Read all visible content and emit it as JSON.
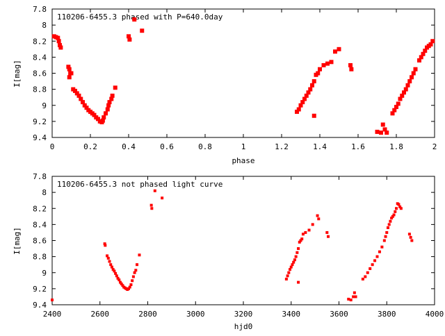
{
  "chart_data": [
    {
      "type": "scatter",
      "title": "110206-6455.3 phased with P=640.0day",
      "xlabel": "phase",
      "ylabel": "I[mag]",
      "xlim": [
        0,
        2
      ],
      "ylim": [
        7.8,
        9.4
      ],
      "y_inverted": true,
      "xticks": [
        0,
        0.2,
        0.4,
        0.6,
        0.8,
        1,
        1.2,
        1.4,
        1.6,
        1.8,
        2
      ],
      "xtick_labels": [
        "0",
        "0.2",
        "0.4",
        "0.6",
        "0.8",
        "1",
        "1.2",
        "1.4",
        "1.6",
        "1.8",
        "2"
      ],
      "yticks": [
        7.8,
        8,
        8.2,
        8.4,
        8.6,
        8.8,
        9,
        9.2,
        9.4
      ],
      "ytick_labels": [
        "7.8",
        "8",
        "8.2",
        "8.4",
        "8.6",
        "8.8",
        "9",
        "9.2",
        "9.4"
      ],
      "grid": false,
      "marker_color": "#ff0000",
      "points": [
        [
          0.01,
          8.14
        ],
        [
          0.02,
          8.15
        ],
        [
          0.03,
          8.16
        ],
        [
          0.035,
          8.2
        ],
        [
          0.04,
          8.25
        ],
        [
          0.045,
          8.28
        ],
        [
          0.085,
          8.52
        ],
        [
          0.09,
          8.55
        ],
        [
          0.095,
          8.6
        ],
        [
          0.09,
          8.65
        ],
        [
          0.1,
          8.6
        ],
        [
          0.11,
          8.8
        ],
        [
          0.12,
          8.82
        ],
        [
          0.13,
          8.85
        ],
        [
          0.14,
          8.88
        ],
        [
          0.15,
          8.92
        ],
        [
          0.16,
          8.96
        ],
        [
          0.17,
          9.0
        ],
        [
          0.18,
          9.03
        ],
        [
          0.19,
          9.06
        ],
        [
          0.2,
          9.08
        ],
        [
          0.21,
          9.1
        ],
        [
          0.22,
          9.12
        ],
        [
          0.23,
          9.15
        ],
        [
          0.24,
          9.17
        ],
        [
          0.25,
          9.2
        ],
        [
          0.26,
          9.21
        ],
        [
          0.265,
          9.19
        ],
        [
          0.27,
          9.15
        ],
        [
          0.28,
          9.1
        ],
        [
          0.29,
          9.05
        ],
        [
          0.295,
          9.0
        ],
        [
          0.3,
          8.96
        ],
        [
          0.31,
          8.92
        ],
        [
          0.315,
          8.88
        ],
        [
          0.33,
          8.78
        ],
        [
          0.4,
          8.14
        ],
        [
          0.405,
          8.18
        ],
        [
          0.43,
          7.93
        ],
        [
          0.47,
          8.07
        ],
        [
          1.28,
          9.08
        ],
        [
          1.29,
          9.05
        ],
        [
          1.3,
          9.0
        ],
        [
          1.31,
          8.96
        ],
        [
          1.32,
          8.92
        ],
        [
          1.33,
          8.88
        ],
        [
          1.34,
          8.84
        ],
        [
          1.35,
          8.8
        ],
        [
          1.36,
          8.75
        ],
        [
          1.37,
          8.7
        ],
        [
          1.38,
          8.62
        ],
        [
          1.39,
          8.6
        ],
        [
          1.4,
          8.55
        ],
        [
          1.37,
          9.13
        ],
        [
          1.42,
          8.5
        ],
        [
          1.44,
          8.48
        ],
        [
          1.46,
          8.46
        ],
        [
          1.48,
          8.33
        ],
        [
          1.5,
          8.3
        ],
        [
          1.56,
          8.5
        ],
        [
          1.565,
          8.55
        ],
        [
          1.7,
          9.33
        ],
        [
          1.72,
          9.34
        ],
        [
          1.74,
          9.3
        ],
        [
          1.75,
          9.34
        ],
        [
          1.73,
          9.24
        ],
        [
          1.78,
          9.1
        ],
        [
          1.79,
          9.06
        ],
        [
          1.8,
          9.02
        ],
        [
          1.81,
          8.98
        ],
        [
          1.82,
          8.92
        ],
        [
          1.83,
          8.88
        ],
        [
          1.84,
          8.84
        ],
        [
          1.85,
          8.8
        ],
        [
          1.86,
          8.75
        ],
        [
          1.87,
          8.7
        ],
        [
          1.88,
          8.65
        ],
        [
          1.89,
          8.6
        ],
        [
          1.9,
          8.55
        ],
        [
          1.92,
          8.44
        ],
        [
          1.93,
          8.4
        ],
        [
          1.94,
          8.36
        ],
        [
          1.95,
          8.32
        ],
        [
          1.96,
          8.28
        ],
        [
          1.97,
          8.26
        ],
        [
          1.98,
          8.24
        ],
        [
          1.99,
          8.2
        ]
      ]
    },
    {
      "type": "scatter",
      "title": "110206-6455.3 not phased light curve",
      "xlabel": "hjd0",
      "ylabel": "I[mag]",
      "xlim": [
        2400,
        4000
      ],
      "ylim": [
        7.8,
        9.4
      ],
      "y_inverted": true,
      "xticks": [
        2400,
        2600,
        2800,
        3000,
        3200,
        3400,
        3600,
        3800,
        4000
      ],
      "xtick_labels": [
        "2400",
        "2600",
        "2800",
        "3000",
        "3200",
        "3400",
        "3600",
        "3800",
        "4000"
      ],
      "yticks": [
        7.8,
        8,
        8.2,
        8.4,
        8.6,
        8.8,
        9,
        9.2,
        9.4
      ],
      "ytick_labels": [
        "7.8",
        "8",
        "8.2",
        "8.4",
        "8.6",
        "8.8",
        "9",
        "9.2",
        "9.4"
      ],
      "grid": false,
      "marker_color": "#ff0000",
      "points": [
        [
          2400,
          9.34
        ],
        [
          2620,
          8.64
        ],
        [
          2622,
          8.66
        ],
        [
          2630,
          8.79
        ],
        [
          2635,
          8.82
        ],
        [
          2640,
          8.86
        ],
        [
          2645,
          8.9
        ],
        [
          2650,
          8.93
        ],
        [
          2655,
          8.96
        ],
        [
          2660,
          8.98
        ],
        [
          2665,
          9.01
        ],
        [
          2670,
          9.04
        ],
        [
          2675,
          9.07
        ],
        [
          2680,
          9.09
        ],
        [
          2685,
          9.12
        ],
        [
          2690,
          9.14
        ],
        [
          2695,
          9.16
        ],
        [
          2700,
          9.18
        ],
        [
          2705,
          9.19
        ],
        [
          2710,
          9.2
        ],
        [
          2715,
          9.21
        ],
        [
          2720,
          9.2
        ],
        [
          2725,
          9.18
        ],
        [
          2730,
          9.15
        ],
        [
          2735,
          9.1
        ],
        [
          2740,
          9.05
        ],
        [
          2745,
          9.0
        ],
        [
          2750,
          8.97
        ],
        [
          2755,
          8.9
        ],
        [
          2765,
          8.78
        ],
        [
          2815,
          8.16
        ],
        [
          2817,
          8.2
        ],
        [
          2830,
          7.98
        ],
        [
          2860,
          8.07
        ],
        [
          3380,
          9.08
        ],
        [
          3385,
          9.04
        ],
        [
          3390,
          9.0
        ],
        [
          3395,
          8.96
        ],
        [
          3400,
          8.93
        ],
        [
          3405,
          8.9
        ],
        [
          3410,
          8.87
        ],
        [
          3415,
          8.84
        ],
        [
          3420,
          8.8
        ],
        [
          3425,
          8.75
        ],
        [
          3430,
          8.7
        ],
        [
          3435,
          8.62
        ],
        [
          3440,
          8.6
        ],
        [
          3445,
          8.58
        ],
        [
          3430,
          9.12
        ],
        [
          3450,
          8.52
        ],
        [
          3460,
          8.5
        ],
        [
          3475,
          8.47
        ],
        [
          3490,
          8.4
        ],
        [
          3510,
          8.29
        ],
        [
          3515,
          8.33
        ],
        [
          3550,
          8.5
        ],
        [
          3555,
          8.55
        ],
        [
          3640,
          9.33
        ],
        [
          3650,
          9.34
        ],
        [
          3660,
          9.3
        ],
        [
          3665,
          9.25
        ],
        [
          3670,
          9.3
        ],
        [
          3700,
          9.08
        ],
        [
          3710,
          9.05
        ],
        [
          3720,
          9.0
        ],
        [
          3730,
          8.95
        ],
        [
          3740,
          8.9
        ],
        [
          3750,
          8.85
        ],
        [
          3760,
          8.8
        ],
        [
          3770,
          8.74
        ],
        [
          3780,
          8.68
        ],
        [
          3790,
          8.6
        ],
        [
          3795,
          8.55
        ],
        [
          3800,
          8.5
        ],
        [
          3805,
          8.44
        ],
        [
          3810,
          8.4
        ],
        [
          3815,
          8.36
        ],
        [
          3820,
          8.32
        ],
        [
          3825,
          8.3
        ],
        [
          3830,
          8.28
        ],
        [
          3835,
          8.24
        ],
        [
          3840,
          8.2
        ],
        [
          3845,
          8.14
        ],
        [
          3850,
          8.15
        ],
        [
          3855,
          8.18
        ],
        [
          3860,
          8.2
        ],
        [
          3895,
          8.52
        ],
        [
          3900,
          8.56
        ],
        [
          3905,
          8.6
        ]
      ]
    }
  ]
}
